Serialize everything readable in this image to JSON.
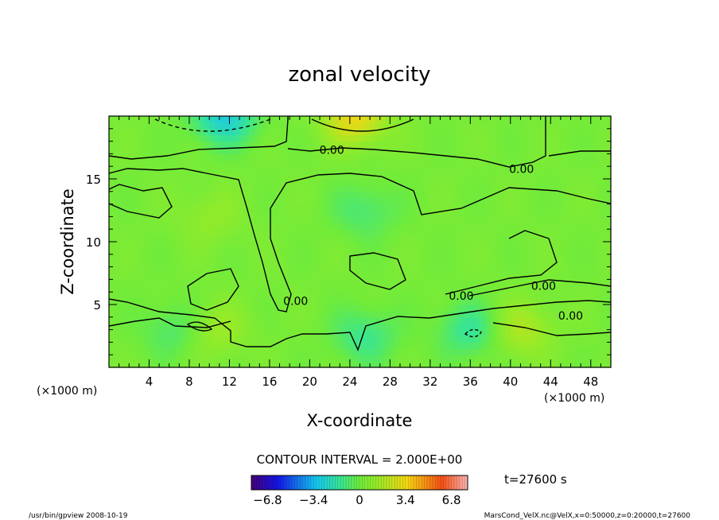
{
  "chart_data": {
    "type": "heatmap",
    "title": "zonal velocity",
    "xlabel": "X-coordinate",
    "ylabel": "Z-coordinate",
    "x_unit_label": "(×1000 m)",
    "x_unit_label_bottom": "(×1000 m)",
    "xlim": [
      0,
      50
    ],
    "ylim": [
      0,
      20
    ],
    "x_ticks": [
      4,
      8,
      12,
      16,
      20,
      24,
      28,
      32,
      36,
      40,
      44,
      48
    ],
    "y_ticks": [
      5,
      10,
      15
    ],
    "contour_labels": [
      {
        "text": "0.00",
        "x": 22.2,
        "z": 17.3
      },
      {
        "text": "0.00",
        "x": 41.1,
        "z": 15.8
      },
      {
        "text": "0.00",
        "x": 18.6,
        "z": 5.3
      },
      {
        "text": "0.00",
        "x": 35.1,
        "z": 5.7
      },
      {
        "text": "0.00",
        "x": 43.3,
        "z": 6.5
      },
      {
        "text": "0.00",
        "x": 46.0,
        "z": 4.1
      }
    ],
    "features": [
      {
        "x": 11.5,
        "z": 20.0,
        "value": -3.0
      },
      {
        "x": 24.5,
        "z": 20.0,
        "value": 3.0
      },
      {
        "x": 10.0,
        "z": 12.0,
        "value": 0.8
      },
      {
        "x": 25.5,
        "z": 12.5,
        "value": -1.2
      },
      {
        "x": 6.5,
        "z": 3.0,
        "value": -1.2
      },
      {
        "x": 10.5,
        "z": 3.0,
        "value": 1.2
      },
      {
        "x": 25.5,
        "z": 2.5,
        "value": -1.6
      },
      {
        "x": 36.0,
        "z": 3.0,
        "value": -1.8
      },
      {
        "x": 41.0,
        "z": 3.0,
        "value": 1.6
      }
    ],
    "colorbar": {
      "vmin": -8,
      "vmax": 8,
      "tick_labels": [
        "−6.8",
        "−3.4",
        "0",
        "3.4",
        "6.8"
      ],
      "tick_values": [
        -6.8,
        -3.4,
        0,
        3.4,
        6.8
      ]
    },
    "contour_interval_text": "CONTOUR INTERVAL = 2.000E+00",
    "time_text": "t=27600 s"
  },
  "footer": {
    "left": "/usr/bin/gpview   2008-10-19",
    "right": "MarsCond_VelX.nc@VelX,x=0:50000,z=0:20000,t=27600"
  }
}
